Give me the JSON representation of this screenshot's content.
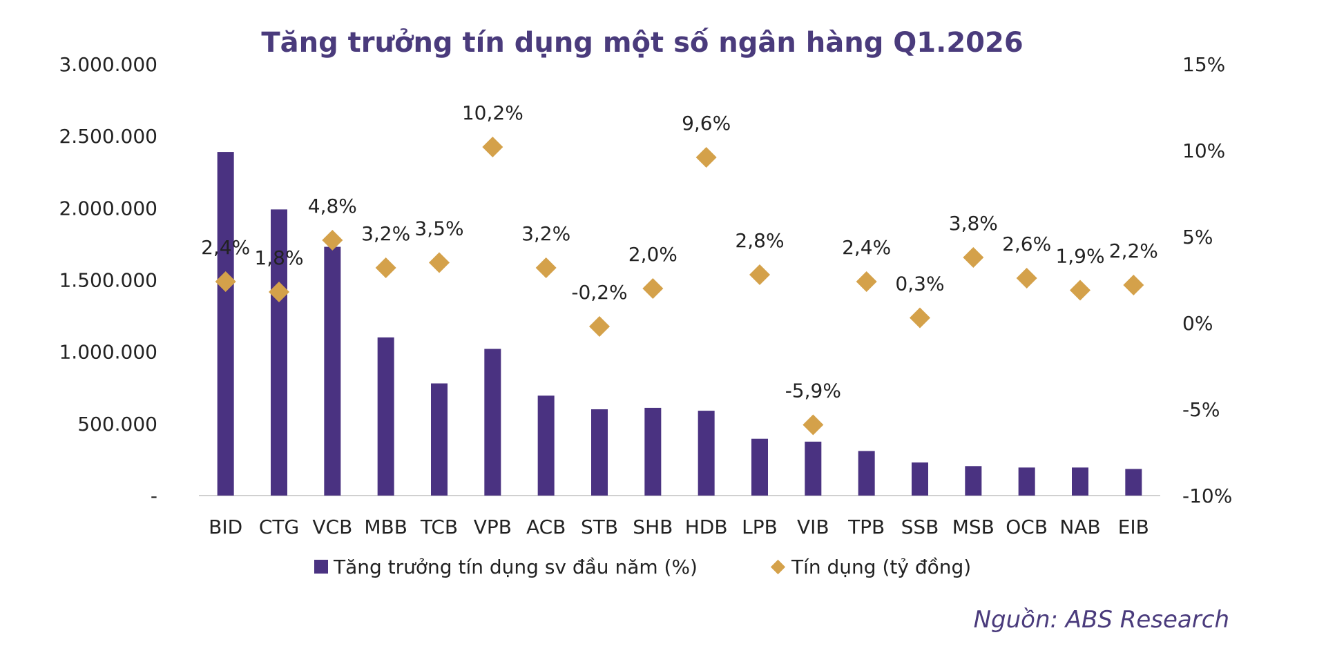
{
  "chart_data": {
    "type": "bar",
    "title": "Tăng trưởng tín dụng một số ngân hàng Q1.2026",
    "categories": [
      "BID",
      "CTG",
      "VCB",
      "MBB",
      "TCB",
      "VPB",
      "ACB",
      "STB",
      "SHB",
      "HDB",
      "LPB",
      "VIB",
      "TPB",
      "SSB",
      "MSB",
      "OCB",
      "NAB",
      "EIB"
    ],
    "series": [
      {
        "name": "Tăng trưởng tín dụng sv đầu năm (%)",
        "kind": "bar",
        "axis": "left",
        "color": "#4a3281",
        "values": [
          2390000,
          1990000,
          1730000,
          1100000,
          780000,
          1020000,
          695000,
          600000,
          610000,
          590000,
          395000,
          375000,
          310000,
          230000,
          205000,
          195000,
          195000,
          185000
        ]
      },
      {
        "name": "Tín dụng (tỷ đồng)",
        "kind": "scatter",
        "axis": "right",
        "marker": "diamond",
        "color": "#d4a14a",
        "values": [
          2.4,
          1.8,
          4.8,
          3.2,
          3.5,
          10.2,
          3.2,
          -0.2,
          2.0,
          9.6,
          2.8,
          -5.9,
          2.4,
          0.3,
          3.8,
          2.6,
          1.9,
          2.2
        ],
        "labels": [
          "2,4%",
          "1,8%",
          "4,8%",
          "3,2%",
          "3,5%",
          "10,2%",
          "3,2%",
          "-0,2%",
          "2,0%",
          "9,6%",
          "2,8%",
          "-5,9%",
          "2,4%",
          "0,3%",
          "3,8%",
          "2,6%",
          "1,9%",
          "2,2%"
        ]
      }
    ],
    "y_left": {
      "ylim": [
        0,
        3000000
      ],
      "ticks": [
        0,
        500000,
        1000000,
        1500000,
        2000000,
        2500000,
        3000000
      ],
      "tick_labels": [
        "-",
        "500.000",
        "1.000.000",
        "1.500.000",
        "2.000.000",
        "2.500.000",
        "3.000.000"
      ]
    },
    "y_right": {
      "ylim": [
        -10,
        15
      ],
      "ticks": [
        -10,
        -5,
        0,
        5,
        10,
        15
      ],
      "tick_labels": [
        "-10%",
        "-5%",
        "0%",
        "5%",
        "10%",
        "15%"
      ]
    },
    "grid": false,
    "legend": "bottom-center"
  },
  "source": "Nguồn: ABS Research"
}
